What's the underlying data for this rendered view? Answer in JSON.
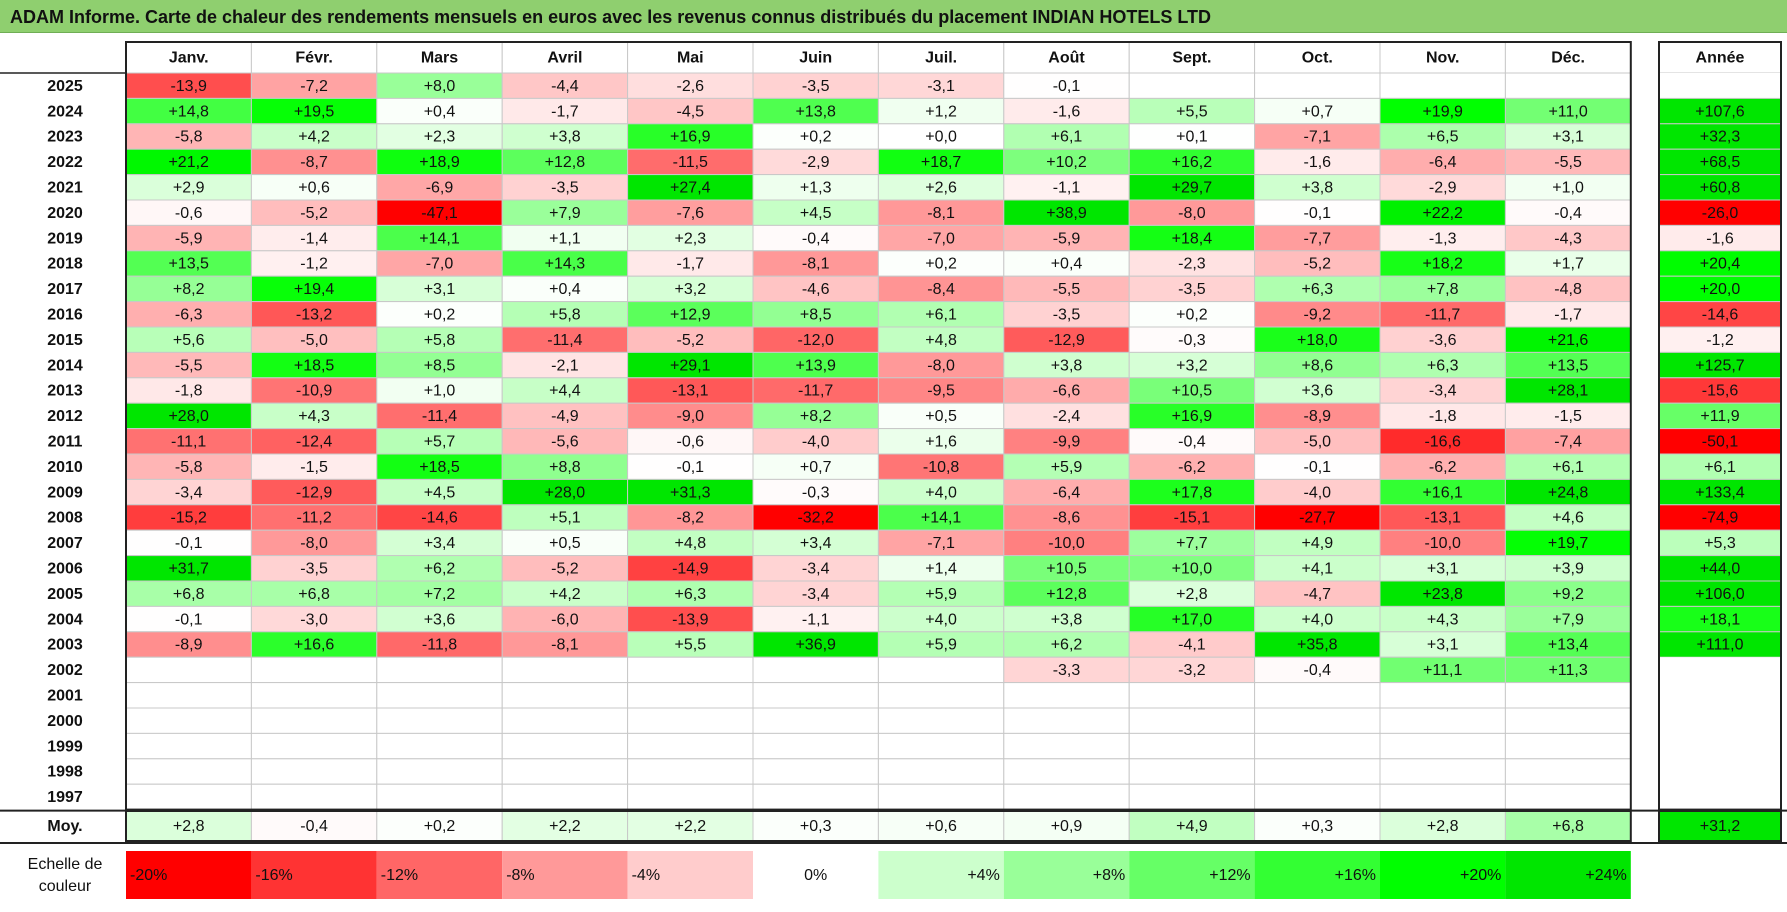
{
  "title": "ADAM Informe. Carte de chaleur des rendements mensuels en euros avec les revenus connus distribués du placement INDIAN HOTELS LTD",
  "chart_data": {
    "type": "heatmap",
    "columns": [
      "Janv.",
      "Févr.",
      "Mars",
      "Avril",
      "Mai",
      "Juin",
      "Juil.",
      "Août",
      "Sept.",
      "Oct.",
      "Nov.",
      "Déc."
    ],
    "annual_label": "Année",
    "average_label": "Moy.",
    "rows": [
      {
        "year": "2025",
        "values": [
          -13.9,
          -7.2,
          8.0,
          -4.4,
          -2.6,
          -3.5,
          -3.1,
          -0.1,
          null,
          null,
          null,
          null
        ],
        "annual": null
      },
      {
        "year": "2024",
        "values": [
          14.8,
          19.5,
          0.4,
          -1.7,
          -4.5,
          13.8,
          1.2,
          -1.6,
          5.5,
          0.7,
          19.9,
          11.0
        ],
        "annual": 107.6
      },
      {
        "year": "2023",
        "values": [
          -5.8,
          4.2,
          2.3,
          3.8,
          16.9,
          0.2,
          0.0,
          6.1,
          0.1,
          -7.1,
          6.5,
          3.1
        ],
        "annual": 32.3
      },
      {
        "year": "2022",
        "values": [
          21.2,
          -8.7,
          18.9,
          12.8,
          -11.5,
          -2.9,
          18.7,
          10.2,
          16.2,
          -1.6,
          -6.4,
          -5.5
        ],
        "annual": 68.5
      },
      {
        "year": "2021",
        "values": [
          2.9,
          0.6,
          -6.9,
          -3.5,
          27.4,
          1.3,
          2.6,
          -1.1,
          29.7,
          3.8,
          -2.9,
          1.0
        ],
        "annual": 60.8
      },
      {
        "year": "2020",
        "values": [
          -0.6,
          -5.2,
          -47.1,
          7.9,
          -7.6,
          4.5,
          -8.1,
          38.9,
          -8.0,
          -0.1,
          22.2,
          -0.4
        ],
        "annual": -26.0
      },
      {
        "year": "2019",
        "values": [
          -5.9,
          -1.4,
          14.1,
          1.1,
          2.3,
          -0.4,
          -7.0,
          -5.9,
          18.4,
          -7.7,
          -1.3,
          -4.3
        ],
        "annual": -1.6
      },
      {
        "year": "2018",
        "values": [
          13.5,
          -1.2,
          -7.0,
          14.3,
          -1.7,
          -8.1,
          0.2,
          0.4,
          -2.3,
          -5.2,
          18.2,
          1.7
        ],
        "annual": 20.4
      },
      {
        "year": "2017",
        "values": [
          8.2,
          19.4,
          3.1,
          0.4,
          3.2,
          -4.6,
          -8.4,
          -5.5,
          -3.5,
          6.3,
          7.8,
          -4.8
        ],
        "annual": 20.0
      },
      {
        "year": "2016",
        "values": [
          -6.3,
          -13.2,
          0.2,
          5.8,
          12.9,
          8.5,
          6.1,
          -3.5,
          0.2,
          -9.2,
          -11.7,
          -1.7
        ],
        "annual": -14.6
      },
      {
        "year": "2015",
        "values": [
          5.6,
          -5.0,
          5.8,
          -11.4,
          -5.2,
          -12.0,
          4.8,
          -12.9,
          -0.3,
          18.0,
          -3.6,
          21.6
        ],
        "annual": -1.2
      },
      {
        "year": "2014",
        "values": [
          -5.5,
          18.5,
          8.5,
          -2.1,
          29.1,
          13.9,
          -8.0,
          3.8,
          3.2,
          8.6,
          6.3,
          13.5
        ],
        "annual": 125.7
      },
      {
        "year": "2013",
        "values": [
          -1.8,
          -10.9,
          1.0,
          4.4,
          -13.1,
          -11.7,
          -9.5,
          -6.6,
          10.5,
          3.6,
          -3.4,
          28.1
        ],
        "annual": -15.6
      },
      {
        "year": "2012",
        "values": [
          28.0,
          4.3,
          -11.4,
          -4.9,
          -9.0,
          8.2,
          0.5,
          -2.4,
          16.9,
          -8.9,
          -1.8,
          -1.5
        ],
        "annual": 11.9
      },
      {
        "year": "2011",
        "values": [
          -11.1,
          -12.4,
          5.7,
          -5.6,
          -0.6,
          -4.0,
          1.6,
          -9.9,
          -0.4,
          -5.0,
          -16.6,
          -7.4
        ],
        "annual": -50.1
      },
      {
        "year": "2010",
        "values": [
          -5.8,
          -1.5,
          18.5,
          8.8,
          -0.1,
          0.7,
          -10.8,
          5.9,
          -6.2,
          -0.1,
          -6.2,
          6.1
        ],
        "annual": 6.1
      },
      {
        "year": "2009",
        "values": [
          -3.4,
          -12.9,
          4.5,
          28.0,
          31.3,
          -0.3,
          4.0,
          -6.4,
          17.8,
          -4.0,
          16.1,
          24.8
        ],
        "annual": 133.4
      },
      {
        "year": "2008",
        "values": [
          -15.2,
          -11.2,
          -14.6,
          5.1,
          -8.2,
          -32.2,
          14.1,
          -8.6,
          -15.1,
          -27.7,
          -13.1,
          4.6
        ],
        "annual": -74.9
      },
      {
        "year": "2007",
        "values": [
          -0.1,
          -8.0,
          3.4,
          0.5,
          4.8,
          3.4,
          -7.1,
          -10.0,
          7.7,
          4.9,
          -10.0,
          19.7
        ],
        "annual": 5.3
      },
      {
        "year": "2006",
        "values": [
          31.7,
          -3.5,
          6.2,
          -5.2,
          -14.9,
          -3.4,
          1.4,
          10.5,
          10.0,
          4.1,
          3.1,
          3.9
        ],
        "annual": 44.0
      },
      {
        "year": "2005",
        "values": [
          6.8,
          6.8,
          7.2,
          4.2,
          6.3,
          -3.4,
          5.9,
          12.8,
          2.8,
          -4.7,
          23.8,
          9.2
        ],
        "annual": 106.0
      },
      {
        "year": "2004",
        "values": [
          -0.1,
          -3.0,
          3.6,
          -6.0,
          -13.9,
          -1.1,
          4.0,
          3.8,
          17.0,
          4.0,
          4.3,
          7.9
        ],
        "annual": 18.1
      },
      {
        "year": "2003",
        "values": [
          -8.9,
          16.6,
          -11.8,
          -8.1,
          5.5,
          36.9,
          5.9,
          6.2,
          -4.1,
          35.8,
          3.1,
          13.4
        ],
        "annual": 111.0
      },
      {
        "year": "2002",
        "values": [
          null,
          null,
          null,
          null,
          null,
          null,
          null,
          -3.3,
          -3.2,
          -0.4,
          11.1,
          11.3
        ],
        "annual": null
      },
      {
        "year": "2001",
        "values": [
          null,
          null,
          null,
          null,
          null,
          null,
          null,
          null,
          null,
          null,
          null,
          null
        ],
        "annual": null
      },
      {
        "year": "2000",
        "values": [
          null,
          null,
          null,
          null,
          null,
          null,
          null,
          null,
          null,
          null,
          null,
          null
        ],
        "annual": null
      },
      {
        "year": "1999",
        "values": [
          null,
          null,
          null,
          null,
          null,
          null,
          null,
          null,
          null,
          null,
          null,
          null
        ],
        "annual": null
      },
      {
        "year": "1998",
        "values": [
          null,
          null,
          null,
          null,
          null,
          null,
          null,
          null,
          null,
          null,
          null,
          null
        ],
        "annual": null
      },
      {
        "year": "1997",
        "values": [
          null,
          null,
          null,
          null,
          null,
          null,
          null,
          null,
          null,
          null,
          null,
          null
        ],
        "annual": null
      }
    ],
    "average": {
      "values": [
        2.8,
        -0.4,
        0.2,
        2.2,
        2.2,
        0.3,
        0.6,
        0.9,
        4.9,
        0.3,
        2.8,
        6.8
      ],
      "annual": 31.2
    },
    "scale": {
      "label": "Echelle de couleur",
      "stops": [
        {
          "label": "-20%",
          "value": -20,
          "color": "#ff0000"
        },
        {
          "label": "-16%",
          "value": -16,
          "color": "#ff3333"
        },
        {
          "label": "-12%",
          "value": -12,
          "color": "#ff6666"
        },
        {
          "label": "-8%",
          "value": -8,
          "color": "#ff9999"
        },
        {
          "label": "-4%",
          "value": -4,
          "color": "#ffcccc"
        },
        {
          "label": "0%",
          "value": 0,
          "color": "#ffffff"
        },
        {
          "label": "+4%",
          "value": 4,
          "color": "#ccffcc"
        },
        {
          "label": "+8%",
          "value": 8,
          "color": "#99ff99"
        },
        {
          "label": "+12%",
          "value": 12,
          "color": "#66ff66"
        },
        {
          "label": "+16%",
          "value": 16,
          "color": "#33ff33"
        },
        {
          "label": "+20%",
          "value": 20,
          "color": "#00ff00"
        },
        {
          "label": "+24%",
          "value": 24,
          "color": "#00e600"
        }
      ]
    }
  }
}
